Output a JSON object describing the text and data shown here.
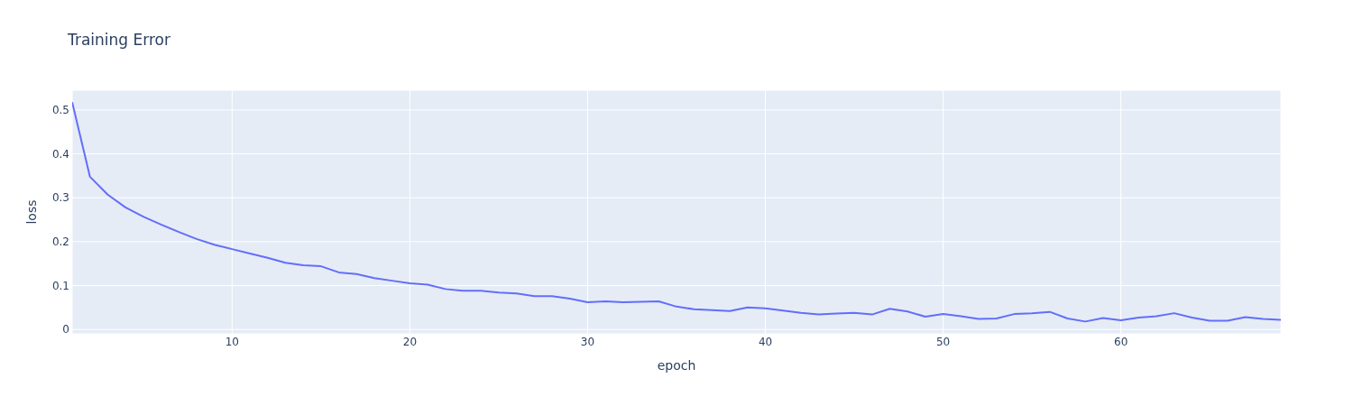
{
  "chart_data": {
    "type": "line",
    "title": "Training Error",
    "xlabel": "epoch",
    "ylabel": "loss",
    "x": [
      1,
      2,
      3,
      4,
      5,
      6,
      7,
      8,
      9,
      10,
      11,
      12,
      13,
      14,
      15,
      16,
      17,
      18,
      19,
      20,
      21,
      22,
      23,
      24,
      25,
      26,
      27,
      28,
      29,
      30,
      31,
      32,
      33,
      34,
      35,
      36,
      37,
      38,
      39,
      40,
      41,
      42,
      43,
      44,
      45,
      46,
      47,
      48,
      49,
      50,
      51,
      52,
      53,
      54,
      55,
      56,
      57,
      58,
      59,
      60,
      61,
      62,
      63,
      64,
      65,
      66,
      67,
      68,
      69
    ],
    "series": [
      {
        "color": "#636efa",
        "values": [
          0.518,
          0.348,
          0.307,
          0.278,
          0.257,
          0.239,
          0.222,
          0.206,
          0.193,
          0.183,
          0.173,
          0.163,
          0.152,
          0.146,
          0.144,
          0.13,
          0.126,
          0.117,
          0.111,
          0.105,
          0.102,
          0.092,
          0.088,
          0.088,
          0.084,
          0.082,
          0.076,
          0.076,
          0.07,
          0.062,
          0.064,
          0.062,
          0.063,
          0.064,
          0.052,
          0.046,
          0.044,
          0.042,
          0.05,
          0.048,
          0.043,
          0.038,
          0.034,
          0.036,
          0.038,
          0.034,
          0.047,
          0.041,
          0.029,
          0.035,
          0.03,
          0.024,
          0.025,
          0.035,
          0.037,
          0.04,
          0.025,
          0.018,
          0.026,
          0.021,
          0.027,
          0.03,
          0.037,
          0.027,
          0.02,
          0.02,
          0.028,
          0.024,
          0.022
        ]
      }
    ],
    "xlim": [
      1,
      69
    ],
    "xticks": [
      10,
      20,
      30,
      40,
      50,
      60
    ],
    "ylim": [
      -0.01,
      0.545
    ],
    "yticks": [
      0,
      0.1,
      0.2,
      0.3,
      0.4,
      0.5
    ],
    "grid": true,
    "line_style": "solid"
  }
}
